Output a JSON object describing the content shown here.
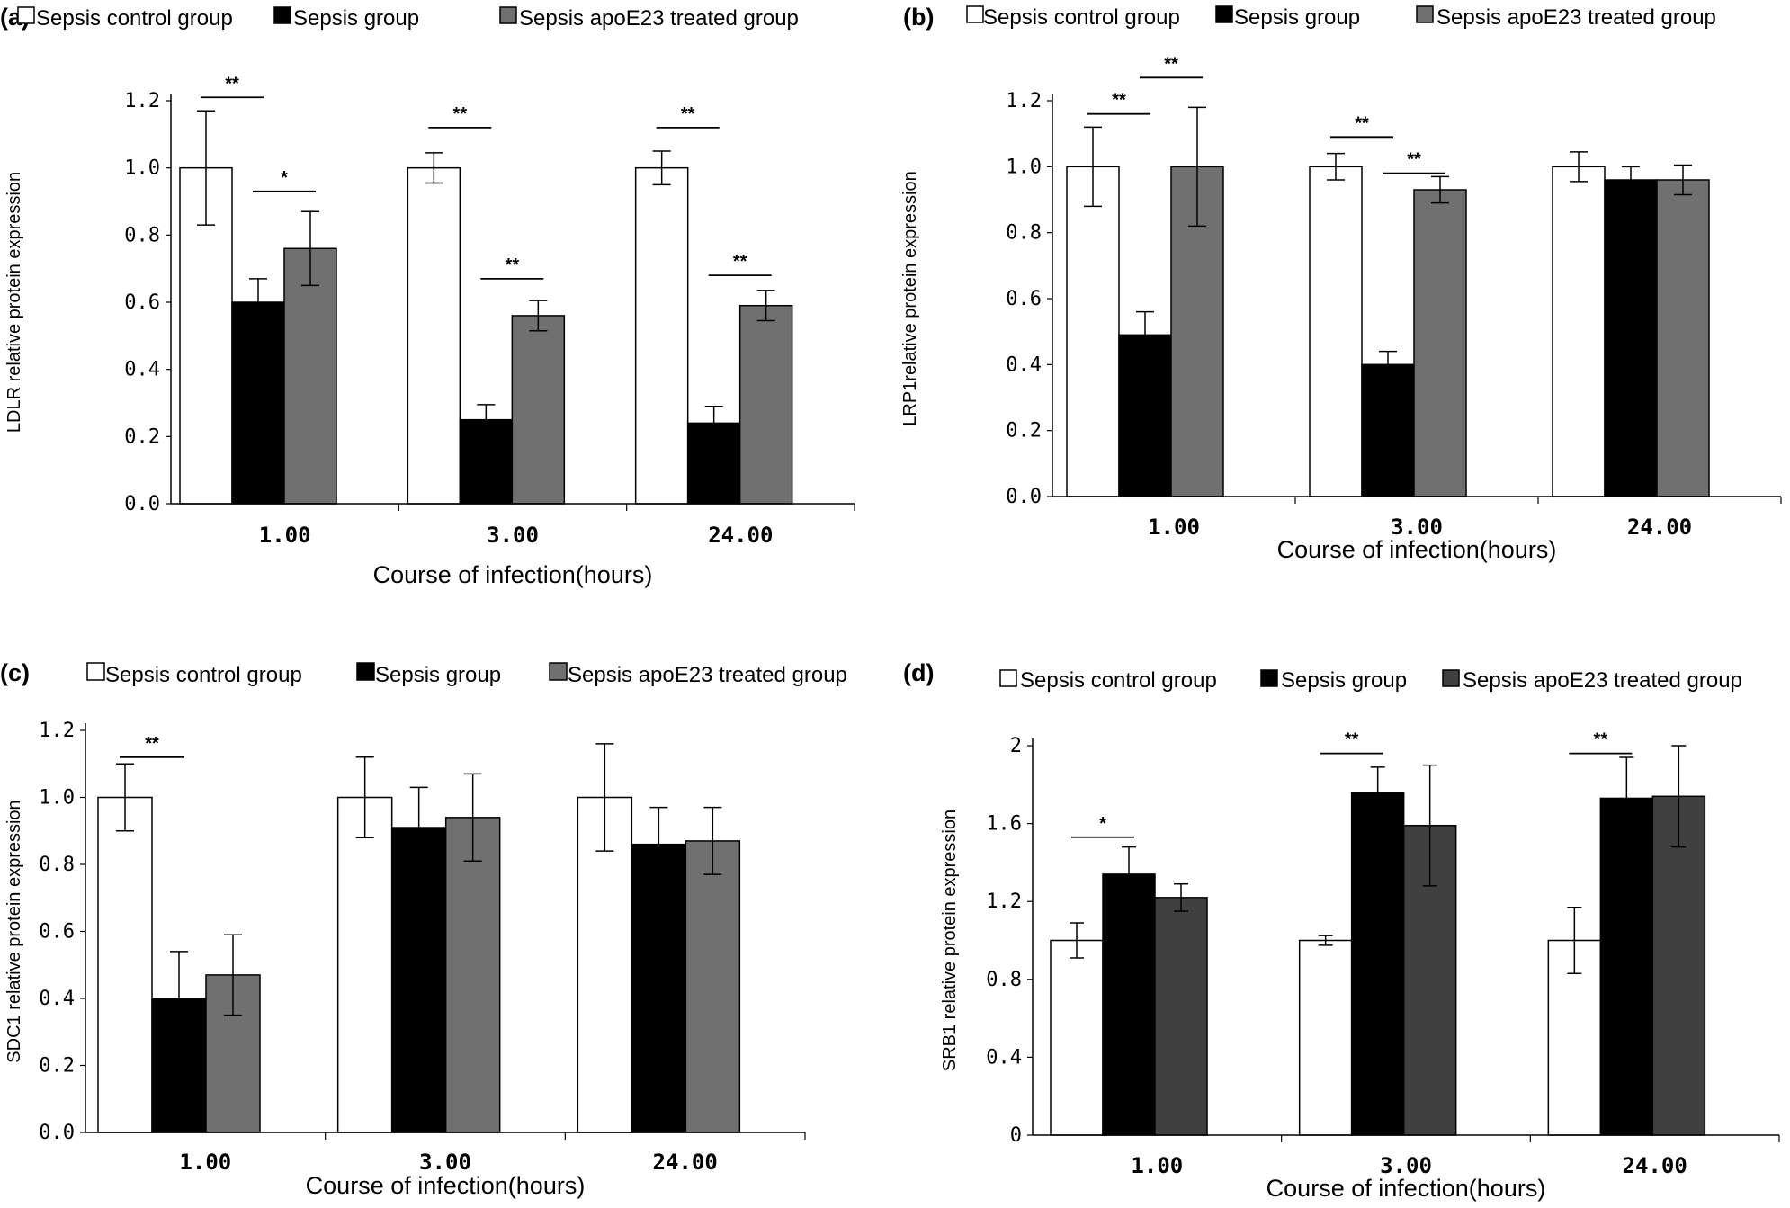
{
  "chart_data": [
    {
      "panel": "(a)",
      "type": "bar",
      "categories": [
        "1.00",
        "3.00",
        "24.00"
      ],
      "series": [
        {
          "name": "Sepsis control group",
          "color": "#ffffff",
          "values": [
            1.0,
            1.0,
            1.0
          ],
          "errors": [
            0.17,
            0.045,
            0.05
          ]
        },
        {
          "name": "Sepsis group",
          "color": "#000000",
          "values": [
            0.6,
            0.25,
            0.24
          ],
          "errors": [
            0.07,
            0.045,
            0.05
          ]
        },
        {
          "name": "Sepsis apoE23 treated group",
          "color": "#707070",
          "values": [
            0.76,
            0.56,
            0.59
          ],
          "errors": [
            0.11,
            0.045,
            0.045
          ]
        }
      ],
      "xlabel": "Course of infection(hours)",
      "ylabel": "LDLR relative protein expression",
      "ylim": [
        0,
        1.2
      ],
      "yticks": [
        "0.0",
        "0.2",
        "0.4",
        "0.6",
        "0.8",
        "1.0",
        "1.2"
      ],
      "significance": [
        {
          "category": 0,
          "pair": [
            0,
            1
          ],
          "label": "**",
          "level": 1.21
        },
        {
          "category": 0,
          "pair": [
            1,
            2
          ],
          "label": "*",
          "level": 0.93
        },
        {
          "category": 1,
          "pair": [
            0,
            1
          ],
          "label": "**",
          "level": 1.12
        },
        {
          "category": 1,
          "pair": [
            1,
            2
          ],
          "label": "**",
          "level": 0.67
        },
        {
          "category": 2,
          "pair": [
            0,
            1
          ],
          "label": "**",
          "level": 1.12
        },
        {
          "category": 2,
          "pair": [
            1,
            2
          ],
          "label": "**",
          "level": 0.68
        }
      ]
    },
    {
      "panel": "(b)",
      "type": "bar",
      "categories": [
        "1.00",
        "3.00",
        "24.00"
      ],
      "series": [
        {
          "name": "Sepsis control group",
          "color": "#ffffff",
          "values": [
            1.0,
            1.0,
            1.0
          ],
          "errors": [
            0.12,
            0.04,
            0.045
          ]
        },
        {
          "name": "Sepsis group",
          "color": "#000000",
          "values": [
            0.49,
            0.4,
            0.96
          ],
          "errors": [
            0.07,
            0.04,
            0.04
          ]
        },
        {
          "name": "Sepsis apoE23 treated group",
          "color": "#707070",
          "values": [
            1.0,
            0.93,
            0.96
          ],
          "errors": [
            0.18,
            0.04,
            0.045
          ]
        }
      ],
      "xlabel": "Course of infection(hours)",
      "ylabel": "LRP1relative protein expression",
      "ylim": [
        0,
        1.2
      ],
      "yticks": [
        "0.0",
        "0.2",
        "0.4",
        "0.6",
        "0.8",
        "1.0",
        "1.2"
      ],
      "significance": [
        {
          "category": 0,
          "pair": [
            0,
            1
          ],
          "label": "**",
          "level": 1.16
        },
        {
          "category": 0,
          "pair": [
            1,
            2
          ],
          "label": "**",
          "level": 1.27
        },
        {
          "category": 1,
          "pair": [
            0,
            1
          ],
          "label": "**",
          "level": 1.09
        },
        {
          "category": 1,
          "pair": [
            1,
            2
          ],
          "label": "**",
          "level": 0.98
        }
      ]
    },
    {
      "panel": "(c)",
      "type": "bar",
      "categories": [
        "1.00",
        "3.00",
        "24.00"
      ],
      "series": [
        {
          "name": "Sepsis control group",
          "color": "#ffffff",
          "values": [
            1.0,
            1.0,
            1.0
          ],
          "errors": [
            0.1,
            0.12,
            0.16
          ]
        },
        {
          "name": "Sepsis group",
          "color": "#000000",
          "values": [
            0.4,
            0.91,
            0.86
          ],
          "errors": [
            0.14,
            0.12,
            0.11
          ]
        },
        {
          "name": "Sepsis apoE23 treated group",
          "color": "#707070",
          "values": [
            0.47,
            0.94,
            0.87
          ],
          "errors": [
            0.12,
            0.13,
            0.1
          ]
        }
      ],
      "xlabel": "Course of infection(hours)",
      "ylabel": "SDC1 relative protein expression",
      "ylim": [
        0,
        1.2
      ],
      "yticks": [
        "0.0",
        "0.2",
        "0.4",
        "0.6",
        "0.8",
        "1.0",
        "1.2"
      ],
      "significance": [
        {
          "category": 0,
          "pair": [
            0,
            1
          ],
          "label": "**",
          "level": 1.12
        }
      ]
    },
    {
      "panel": "(d)",
      "type": "bar",
      "categories": [
        "1.00",
        "3.00",
        "24.00"
      ],
      "series": [
        {
          "name": "Sepsis control group",
          "color": "#ffffff",
          "values": [
            1.0,
            1.0,
            1.0
          ],
          "errors": [
            0.09,
            0.025,
            0.17
          ]
        },
        {
          "name": "Sepsis group",
          "color": "#000000",
          "values": [
            1.34,
            1.76,
            1.73
          ],
          "errors": [
            0.14,
            0.13,
            0.21
          ]
        },
        {
          "name": "Sepsis apoE23 treated group",
          "color": "#404040",
          "values": [
            1.22,
            1.59,
            1.74
          ],
          "errors": [
            0.07,
            0.31,
            0.26
          ]
        }
      ],
      "xlabel": "Course of infection(hours)",
      "ylabel": "SRB1 relative protein expression",
      "ylim": [
        0,
        2.0
      ],
      "yticks": [
        "0",
        "0.4",
        "0.8",
        "1.2",
        "1.6",
        "2"
      ],
      "significance": [
        {
          "category": 0,
          "pair": [
            0,
            1
          ],
          "label": "*",
          "level": 1.53
        },
        {
          "category": 1,
          "pair": [
            0,
            1
          ],
          "label": "**",
          "level": 1.96
        },
        {
          "category": 2,
          "pair": [
            0,
            1
          ],
          "label": "**",
          "level": 1.96
        }
      ]
    }
  ]
}
